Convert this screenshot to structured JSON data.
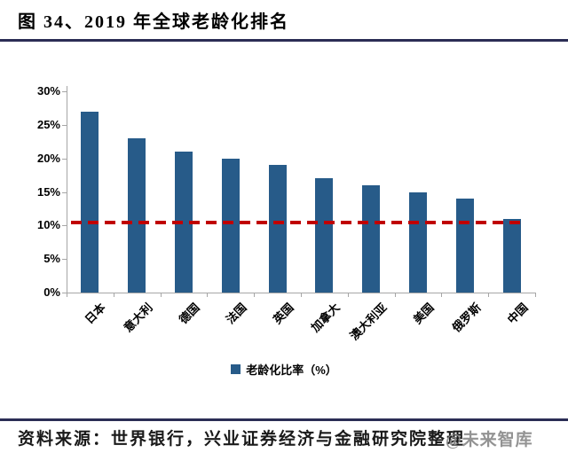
{
  "page": {
    "title": "图 34、2019 年全球老龄化排名",
    "source_text": "资料来源：世界银行，兴业证券经济与金融研究院整理",
    "watermark": "@未来智库",
    "rule_color": "#2b2d55"
  },
  "chart_data": {
    "type": "bar",
    "title": "2019 年全球老龄化排名",
    "categories": [
      "日本",
      "意大利",
      "德国",
      "法国",
      "英国",
      "加拿大",
      "澳大利亚",
      "美国",
      "俄罗斯",
      "中国"
    ],
    "values": [
      27,
      23,
      21,
      20,
      19,
      17,
      16,
      15,
      14,
      11
    ],
    "unit": "%",
    "xlabel": "",
    "ylabel": "",
    "ylim": [
      0,
      30
    ],
    "ytick_step": 5,
    "ytick_labels": [
      "0%",
      "5%",
      "10%",
      "15%",
      "20%",
      "25%",
      "30%"
    ],
    "grid": false,
    "bar_color": "#275b89",
    "axis_color": "#a6a6a6",
    "reference_line": {
      "value": 10.5,
      "style": "dashed",
      "color": "#c00000"
    },
    "legend_position": "bottom",
    "legend": [
      {
        "label": "老龄化比率（%）",
        "color": "#275b89"
      }
    ]
  }
}
